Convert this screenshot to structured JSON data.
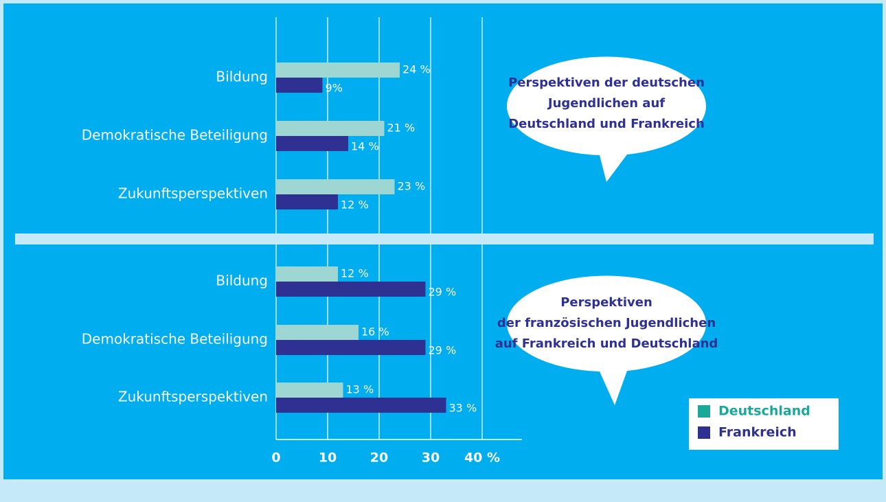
{
  "chart_data": [
    {
      "type": "hbar",
      "title": [
        "Perspektiven der deutschen",
        "Jugendlichen auf",
        "Deutschland und Frankreich"
      ],
      "categories": [
        "Bildung",
        "Demokratische Beteiligung",
        "Zukunftsperspektiven"
      ],
      "series": [
        {
          "color": "#9ed6d3",
          "values": [
            24,
            21,
            23
          ],
          "value_labels": [
            "24 %",
            "21 %",
            "23 %"
          ]
        },
        {
          "color": "#2e3192",
          "values": [
            9,
            14,
            12
          ],
          "value_labels": [
            "9%",
            "14 %",
            "12 %"
          ]
        }
      ],
      "xlim": [
        0,
        40
      ],
      "xticks": [
        0,
        10,
        20,
        30,
        40
      ],
      "grid": true
    },
    {
      "type": "hbar",
      "title": [
        "Perspektiven",
        "der französischen Jugendlichen",
        "auf Frankreich und Deutschland"
      ],
      "categories": [
        "Bildung",
        "Demokratische Beteiligung",
        "Zukunftsperspektiven"
      ],
      "series": [
        {
          "name": "Deutschland",
          "color": "#9ed6d3",
          "legend_color": "#1aa89a",
          "values": [
            12,
            16,
            13
          ],
          "value_labels": [
            "12 %",
            "16 %",
            "13 %"
          ]
        },
        {
          "name": "Frankreich",
          "color": "#2e3192",
          "legend_color": "#2e3192",
          "values": [
            29,
            29,
            33
          ],
          "value_labels": [
            "29 %",
            "29 %",
            "33 %"
          ]
        }
      ],
      "xlim": [
        0,
        40
      ],
      "xticks": [
        0,
        10,
        20,
        30,
        {
          "value": 40,
          "label": "40 %"
        }
      ],
      "grid": true,
      "legend": "lower right"
    }
  ]
}
